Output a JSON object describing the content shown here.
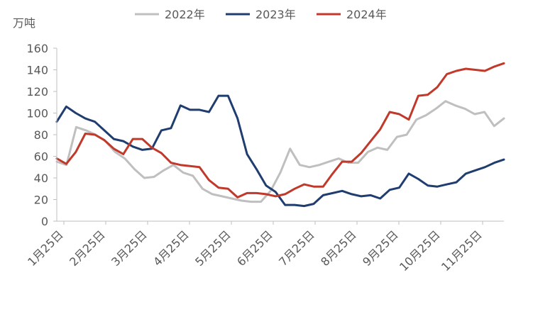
{
  "chart_data": {
    "type": "line",
    "unit": "万吨",
    "ylim": [
      0,
      160
    ],
    "yticks": [
      0,
      20,
      40,
      60,
      80,
      100,
      120,
      140,
      160
    ],
    "grid": false,
    "legend_position": "top-center",
    "x_labels": [
      "1月25日",
      "2月25日",
      "3月25日",
      "4月25日",
      "5月25日",
      "6月25日",
      "7月25日",
      "8月25日",
      "9月25日",
      "10月25日",
      "11月25日"
    ],
    "series": [
      {
        "name": "2022年",
        "color": "#bfbfbf",
        "values": [
          55,
          52,
          87,
          84,
          80,
          74,
          64,
          58,
          48,
          40,
          41,
          47,
          52,
          45,
          42,
          30,
          25,
          23,
          21,
          19,
          18,
          18,
          28,
          45,
          67,
          52,
          50,
          52,
          55,
          58,
          54,
          54,
          64,
          68,
          66,
          78,
          80,
          94,
          98,
          104,
          111,
          107,
          104,
          99,
          101,
          88,
          95
        ]
      },
      {
        "name": "2023年",
        "color": "#1f3d6e",
        "values": [
          92,
          106,
          100,
          95,
          92,
          84,
          76,
          74,
          69,
          66,
          67,
          84,
          86,
          107,
          103,
          103,
          101,
          116,
          116,
          95,
          62,
          48,
          33,
          27,
          15,
          15,
          14,
          16,
          24,
          26,
          28,
          25,
          23,
          24,
          21,
          29,
          31,
          44,
          39,
          33,
          32,
          34,
          36,
          44,
          47,
          50,
          54,
          57
        ]
      },
      {
        "name": "2024年",
        "color": "#c0392b",
        "values": [
          58,
          53,
          64,
          81,
          80,
          75,
          67,
          62,
          76,
          76,
          68,
          63,
          54,
          52,
          51,
          50,
          38,
          31,
          30,
          22,
          26,
          26,
          25,
          23,
          25,
          30,
          34,
          32,
          32,
          44,
          55,
          55,
          63,
          74,
          85,
          101,
          99,
          94,
          116,
          117,
          124,
          136,
          139,
          141,
          140,
          139,
          143,
          146
        ]
      }
    ]
  }
}
